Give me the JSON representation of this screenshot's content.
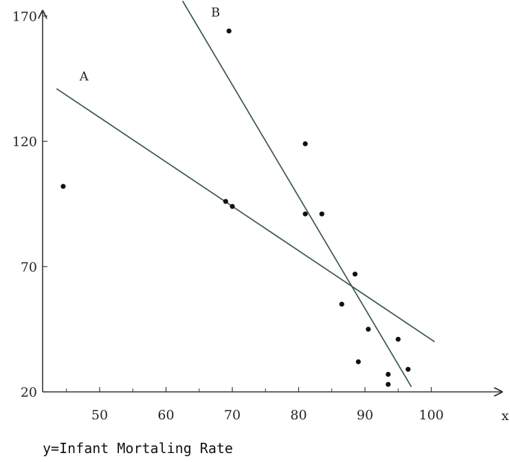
{
  "chart_data": {
    "type": "scatter",
    "xlabel": "x",
    "caption": "y=Infant Mortaling Rate",
    "x_ticks": [
      50,
      60,
      70,
      80,
      90,
      100
    ],
    "y_ticks": [
      20,
      70,
      120,
      170
    ],
    "xlim": [
      42,
      103
    ],
    "ylim": [
      20,
      174
    ],
    "grid": false,
    "points": [
      {
        "x": 44.5,
        "y": 102
      },
      {
        "x": 69.5,
        "y": 164
      },
      {
        "x": 69.0,
        "y": 96
      },
      {
        "x": 70.0,
        "y": 94
      },
      {
        "x": 81.0,
        "y": 119
      },
      {
        "x": 81.0,
        "y": 91
      },
      {
        "x": 83.5,
        "y": 91
      },
      {
        "x": 86.5,
        "y": 55
      },
      {
        "x": 88.5,
        "y": 67
      },
      {
        "x": 89.0,
        "y": 32
      },
      {
        "x": 90.5,
        "y": 45
      },
      {
        "x": 93.5,
        "y": 27
      },
      {
        "x": 93.5,
        "y": 23
      },
      {
        "x": 95.0,
        "y": 41
      },
      {
        "x": 96.5,
        "y": 29
      }
    ],
    "lines": [
      {
        "name": "A",
        "x1": 43.5,
        "y1": 141,
        "x2": 100.5,
        "y2": 40
      },
      {
        "name": "B",
        "x1": 62.5,
        "y1": 176,
        "x2": 97.0,
        "y2": 22
      }
    ]
  }
}
